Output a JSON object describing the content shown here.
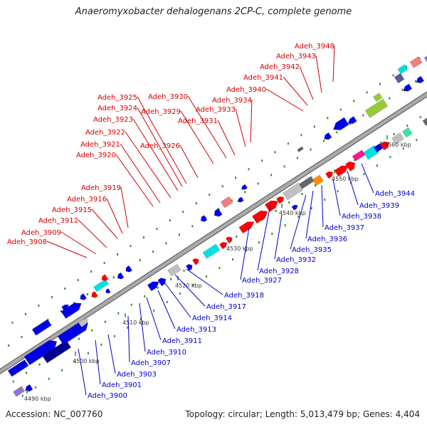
{
  "header": {
    "title": "Anaeromyxobacter dehalogenans 2CP-C, complete genome"
  },
  "footer": {
    "accession": "Accession: NC_007760",
    "summary": "Topology: circular; Length: 5,013,479 bp; Genes: 4,404"
  },
  "colors": {
    "backbone": "#aaaaaa",
    "backbone_edge": "#666666",
    "label_top": "#d40000",
    "label_bottom": "#0000c8",
    "tick": "#2e8b2e",
    "feature_palette": [
      "#ff0000",
      "#0000e6",
      "#00008b",
      "#c0c0c0",
      "#666666",
      "#00e0e0",
      "#40e0a0",
      "#9aca3c",
      "#ff8c00",
      "#ff1493",
      "#f08080",
      "#9370db",
      "#5a5a9a",
      "#b0c020"
    ]
  },
  "map": {
    "tick_labels": [
      "4490 kbp",
      "4500 kbp",
      "4510 kbp",
      "4520 kbp",
      "4530 kbp",
      "4540 kbp",
      "4550 kbp",
      "4560 kbp"
    ],
    "top_labels": [
      "Adeh_3948",
      "Adeh_3943",
      "Adeh_3942",
      "Adeh_3941",
      "Adeh_3940",
      "Adeh_3934",
      "Adeh_3933",
      "Adeh_3931",
      "Adeh_3930",
      "Adeh_3929",
      "Adeh_3926",
      "Adeh_3925",
      "Adeh_3924",
      "Adeh_3923",
      "Adeh_3922",
      "Adeh_3921",
      "Adeh_3920",
      "Adeh_3919",
      "Adeh_3916",
      "Adeh_3915",
      "Adeh_3912",
      "Adeh_3909",
      "Adeh_3908"
    ],
    "bottom_labels": [
      "Adeh_3944",
      "Adeh_3939",
      "Adeh_3938",
      "Adeh_3937",
      "Adeh_3936",
      "Adeh_3935",
      "Adeh_3932",
      "Adeh_3928",
      "Adeh_3927",
      "Adeh_3918",
      "Adeh_3917",
      "Adeh_3914",
      "Adeh_3913",
      "Adeh_3911",
      "Adeh_3910",
      "Adeh_3907",
      "Adeh_3903",
      "Adeh_3901",
      "Adeh_3900"
    ]
  }
}
